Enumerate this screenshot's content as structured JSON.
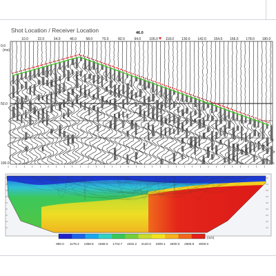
{
  "seismogram": {
    "title": "Shot Location / Receiver Location",
    "shot_marker_label": "46.0",
    "time_unit": "(ms)",
    "receiver_ticks": [
      "10.0",
      "22.0",
      "34.0",
      "46.0",
      "58.0",
      "70.0",
      "82.0",
      "94.0",
      "106.0",
      "118.0",
      "130.0",
      "142.0",
      "154.0",
      "166.0",
      "178.0",
      "190.0"
    ],
    "time_ticks": [
      "0.0",
      "50.0",
      "100.0"
    ],
    "first_break_pick_color": "#e8232a",
    "model_traveltime_color": "#3fc51f"
  },
  "velocity_section": {
    "colorbar_unit": "(m/s)",
    "colorbar_ticks": [
      "990.0",
      "1178.4",
      "1368.9",
      "1558.0",
      "1743.7",
      "1932.2",
      "2120.6",
      "2309.1",
      "2500.0",
      "2685.9",
      "3000.0"
    ],
    "colorbar_colors": [
      "#1f22c8",
      "#1b64e8",
      "#19a8ee",
      "#2fd2c4",
      "#38c85a",
      "#74d03a",
      "#c8dc2c",
      "#f5e21f",
      "#f8b21e",
      "#f2691c",
      "#e3201a"
    ]
  }
}
